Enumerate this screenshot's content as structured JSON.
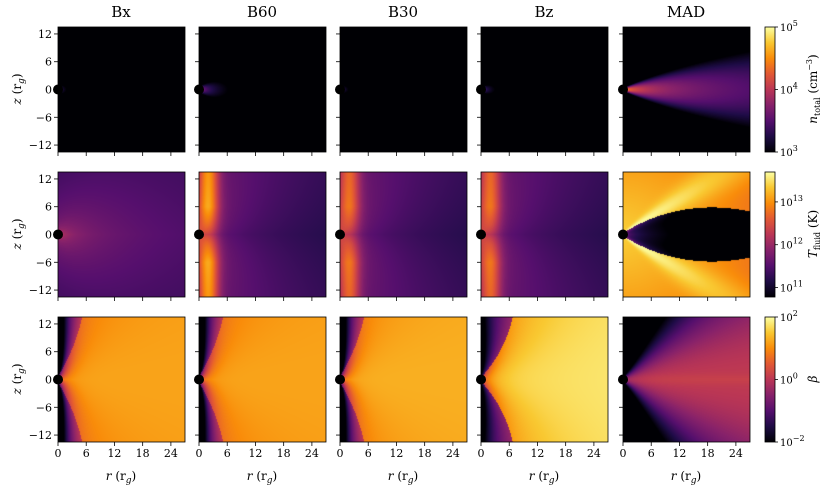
{
  "chart_data": {
    "type": "heatmap",
    "columns": [
      "Bx",
      "B60",
      "B30",
      "Bz",
      "MAD"
    ],
    "x_axis": {
      "label_main": "r",
      "label_unit": "(r",
      "label_unit_sub": "g",
      "label_close": ")",
      "ticks": [
        0,
        6,
        12,
        18,
        24
      ],
      "tick_labels": [
        "0",
        "6",
        "12",
        "18",
        "24"
      ],
      "range": [
        0,
        27
      ]
    },
    "y_axis": {
      "label_main": "z",
      "label_unit": "(r",
      "label_unit_sub": "g",
      "label_close": ")",
      "ticks": [
        -12,
        -6,
        0,
        6,
        12
      ],
      "tick_labels": [
        "−12",
        "−6",
        "0",
        "6",
        "12"
      ],
      "range": [
        -13.5,
        13.5
      ]
    },
    "rows": [
      {
        "quantity": "number density",
        "colorbar": {
          "scale": "log",
          "label_main": "n",
          "label_sub": "total",
          "label_unit": "(cm",
          "label_unit_sup": "−3",
          "label_close": ")",
          "ticks": [
            {
              "base": "10",
              "exp": "5",
              "value": 100000
            },
            {
              "base": "10",
              "exp": "4",
              "value": 10000
            },
            {
              "base": "10",
              "exp": "3",
              "value": 1000
            }
          ],
          "range": [
            1000,
            100000
          ]
        },
        "panels": [
          {
            "model": "Bx",
            "peak_log10": 3.95,
            "open_width": 1.0,
            "mid_concentration": 0.7,
            "shape": "funnel"
          },
          {
            "model": "B60",
            "peak_log10": 4.35,
            "open_width": 0.65,
            "mid_concentration": 1.8,
            "shape": "funnel"
          },
          {
            "model": "B30",
            "peak_log10": 3.95,
            "open_width": 0.95,
            "mid_concentration": 0.9,
            "shape": "funnel"
          },
          {
            "model": "Bz",
            "peak_log10": 4.1,
            "open_width": 0.8,
            "mid_concentration": 1.4,
            "shape": "funnel"
          },
          {
            "model": "MAD",
            "peak_log10": 4.85,
            "open_width": 0.45,
            "mid_concentration": 3.5,
            "shape": "thin-disk"
          }
        ]
      },
      {
        "quantity": "fluid temperature",
        "colorbar": {
          "scale": "log",
          "label_main": "T",
          "label_sub": "fluid",
          "label_unit": "(K)",
          "ticks": [
            {
              "base": "10",
              "exp": "13",
              "value": 10000000000000.0
            },
            {
              "base": "10",
              "exp": "12",
              "value": 1000000000000.0
            },
            {
              "base": "10",
              "exp": "11",
              "value": 100000000000.0
            }
          ],
          "range": [
            60000000000.0,
            50000000000000.0
          ]
        },
        "panels": [
          {
            "model": "Bx",
            "peak_log10": 12.2,
            "shape": "diffuse"
          },
          {
            "model": "B60",
            "peak_log10": 13.2,
            "shape": "hot-jet-edges"
          },
          {
            "model": "B30",
            "peak_log10": 12.9,
            "shape": "hot-jet-edges"
          },
          {
            "model": "Bz",
            "peak_log10": 12.9,
            "shape": "hot-jet-edges"
          },
          {
            "model": "MAD",
            "peak_log10": 13.4,
            "shape": "hot-funnel"
          }
        ]
      },
      {
        "quantity": "plasma beta",
        "colorbar": {
          "scale": "log",
          "label_main": "β",
          "ticks": [
            {
              "base": "10",
              "exp": "2",
              "value": 100
            },
            {
              "base": "10",
              "exp": "0",
              "value": 1
            },
            {
              "base": "10",
              "exp": "−2",
              "value": 0.01
            }
          ],
          "range": [
            0.01,
            100
          ]
        },
        "panels": [
          {
            "model": "Bx",
            "disk_log10": 1.2,
            "shape": "wide-disk"
          },
          {
            "model": "B60",
            "disk_log10": 1.2,
            "shape": "wide-disk"
          },
          {
            "model": "B30",
            "disk_log10": 1.3,
            "shape": "wide-disk"
          },
          {
            "model": "Bz",
            "disk_log10": 1.6,
            "shape": "wedge-disk"
          },
          {
            "model": "MAD",
            "disk_log10": 0.3,
            "shape": "low-beta"
          }
        ]
      }
    ]
  }
}
